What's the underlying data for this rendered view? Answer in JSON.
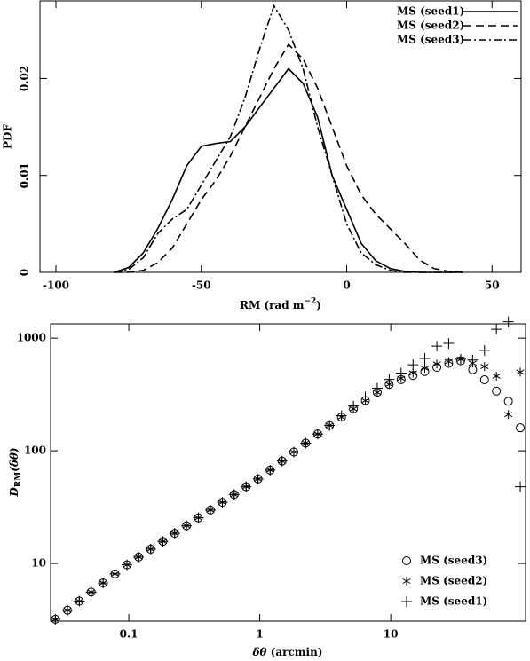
{
  "chart_data": [
    {
      "type": "line",
      "xlabel": {
        "text": "RM (rad m",
        "sup": "−2",
        "end": ")"
      },
      "ylabel": "PDF",
      "xlim": [
        -105.5,
        60
      ],
      "ylim": [
        0,
        0.028
      ],
      "xticks": [
        -100,
        -50,
        0,
        50
      ],
      "yticks": [
        0,
        0.01,
        0.02
      ],
      "legend": "upper right",
      "x": [
        -80,
        -75,
        -70,
        -65,
        -60,
        -55,
        -50,
        -45,
        -40,
        -35,
        -30,
        -25,
        -20,
        -15,
        -10,
        -5,
        0,
        5,
        10,
        15,
        20,
        25,
        30,
        35,
        40
      ],
      "series": [
        {
          "name": "MS (seed1)",
          "color": "#000000",
          "linestyle": "solid",
          "values": [
            0,
            0.0005,
            0.002,
            0.0045,
            0.0075,
            0.011,
            0.013,
            0.0133,
            0.0135,
            0.015,
            0.017,
            0.019,
            0.021,
            0.0195,
            0.016,
            0.01,
            0.0065,
            0.003,
            0.0012,
            0.0004,
            0.0001,
            0,
            0,
            0,
            0
          ]
        },
        {
          "name": "MS (seed2)",
          "color": "#000000",
          "linestyle": "dashed",
          "values": [
            0,
            0,
            0.0002,
            0.001,
            0.0025,
            0.005,
            0.0075,
            0.0095,
            0.012,
            0.015,
            0.018,
            0.021,
            0.0235,
            0.022,
            0.019,
            0.015,
            0.011,
            0.008,
            0.006,
            0.0045,
            0.003,
            0.0013,
            0.0004,
            0.0001,
            0
          ]
        },
        {
          "name": "MS (seed3)",
          "color": "#000000",
          "linestyle": "dashdot",
          "values": [
            0,
            0.0003,
            0.0015,
            0.004,
            0.0055,
            0.0065,
            0.009,
            0.0115,
            0.014,
            0.018,
            0.023,
            0.0275,
            0.025,
            0.021,
            0.015,
            0.01,
            0.005,
            0.002,
            0.0008,
            0.0002,
            0,
            0,
            0,
            0,
            0
          ]
        }
      ]
    },
    {
      "type": "scatter",
      "xlabel": {
        "text": "δθ",
        "end": " (arcmin)"
      },
      "ylabel": {
        "text": "D",
        "sub": "RM",
        "end": "(δθ)"
      },
      "xscale": "log",
      "yscale": "log",
      "xlim": [
        0.0253,
        107
      ],
      "ylim": [
        3.08,
        1340
      ],
      "xticks": [
        0.1,
        1,
        10
      ],
      "yticks": [
        10,
        100,
        1000
      ],
      "legend": "lower right",
      "x": [
        0.0275,
        0.034,
        0.0419,
        0.0516,
        0.0637,
        0.0785,
        0.0968,
        0.119,
        0.147,
        0.182,
        0.224,
        0.276,
        0.34,
        0.42,
        0.518,
        0.638,
        0.787,
        0.97,
        1.2,
        1.48,
        1.82,
        2.24,
        2.77,
        3.41,
        4.21,
        5.19,
        6.4,
        7.89,
        9.73,
        12.0,
        14.8,
        18.2,
        22.5,
        27.7,
        34.2,
        42.2,
        52.0,
        64.1,
        79.1,
        97.5
      ],
      "series": [
        {
          "name": "MS (seed3)",
          "color": "#000000",
          "marker": "circle",
          "values": [
            3.2,
            3.85,
            4.63,
            5.57,
            6.71,
            8.07,
            9.72,
            11.4,
            13.4,
            15.7,
            18.5,
            21.6,
            25.4,
            29.8,
            34.9,
            40.9,
            48.0,
            56.2,
            67.4,
            81.1,
            97.5,
            117,
            141,
            168,
            199,
            236,
            279,
            330,
            389,
            428,
            466,
            506,
            551,
            598,
            630,
            525,
            427,
            339,
            275,
            160
          ]
        },
        {
          "name": "MS (seed2)",
          "color": "#000000",
          "marker": "star",
          "values": [
            3.2,
            3.85,
            4.63,
            5.57,
            6.71,
            8.07,
            9.72,
            11.4,
            13.4,
            15.7,
            18.5,
            21.6,
            25.4,
            29.8,
            34.9,
            40.9,
            48.0,
            56.2,
            67.4,
            81.1,
            97.5,
            117,
            141,
            168,
            199,
            236,
            279,
            330,
            389,
            440,
            490,
            540,
            590,
            620,
            650,
            600,
            560,
            460,
            210,
            500
          ]
        },
        {
          "name": "MS (seed1)",
          "color": "#000000",
          "marker": "plus",
          "values": [
            3.2,
            3.85,
            4.63,
            5.57,
            6.71,
            8.07,
            9.72,
            11.4,
            13.4,
            15.7,
            18.5,
            21.6,
            25.4,
            29.8,
            34.9,
            40.9,
            48.0,
            56.2,
            67.4,
            81.1,
            97.5,
            117,
            141,
            168,
            205,
            250,
            300,
            360,
            430,
            490,
            580,
            660,
            850,
            900,
            650,
            640,
            780,
            1200,
            1400,
            48
          ]
        }
      ]
    }
  ]
}
